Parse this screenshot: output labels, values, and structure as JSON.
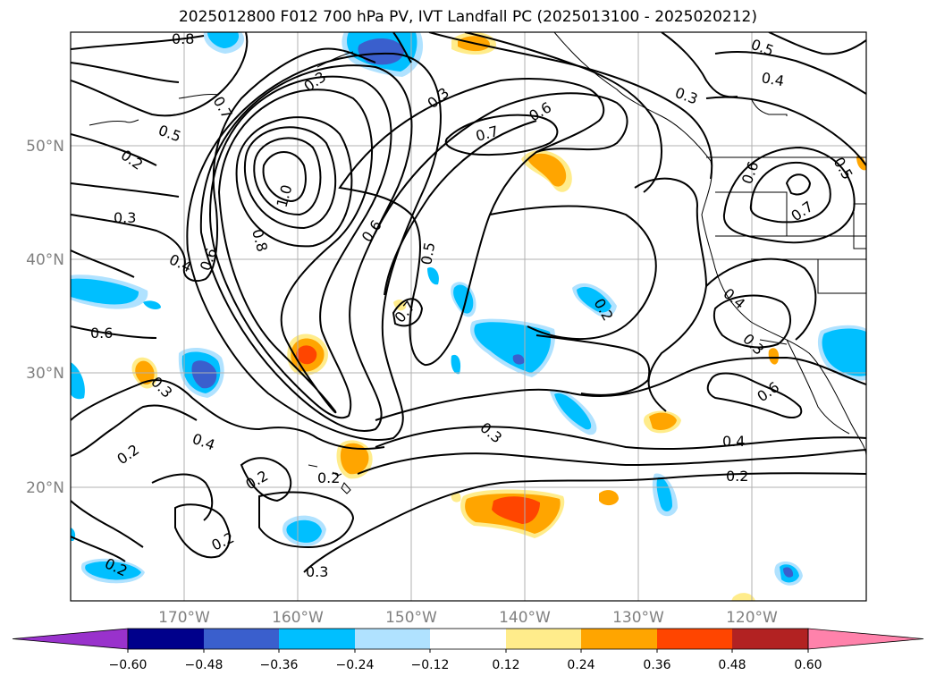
{
  "title": "2025012800 F012 700 hPa PV, IVT Landfall PC (2025013100 - 2025020212)",
  "lat_labels": [
    "50°N",
    "40°N",
    "30°N",
    "20°N"
  ],
  "lon_labels": [
    "170°W",
    "160°W",
    "150°W",
    "140°W",
    "130°W",
    "120°W"
  ],
  "contour_labels": [
    "0.8",
    "0.5",
    "0.2",
    "0.3",
    "0.4",
    "0.6",
    "0.7",
    "1.0",
    "0.8",
    "0.6",
    "0.5",
    "0.7",
    "0.6",
    "0.3",
    "0.3",
    "0.4",
    "0.3",
    "0.5",
    "0.6",
    "0.7",
    "0.4",
    "0.3",
    "0.6",
    "0.5",
    "0.4",
    "0.2",
    "0.3",
    "0.2",
    "0.2",
    "0.2",
    "0.3",
    "0.2",
    "0.3",
    "0.4",
    "0.2",
    "0.6",
    "0.2",
    "0.7"
  ],
  "colorbar": {
    "ticks": [
      "−0.60",
      "−0.48",
      "−0.36",
      "−0.24",
      "−0.12",
      "0.12",
      "0.24",
      "0.36",
      "0.48",
      "0.60"
    ],
    "colors": [
      "#9932cc",
      "#00008b",
      "#3a5fcd",
      "#00bfff",
      "#b0e2ff",
      "#ffffff",
      "#ffec8b",
      "#ffa500",
      "#ff4500",
      "#b22222",
      "#ff82ab"
    ]
  }
}
